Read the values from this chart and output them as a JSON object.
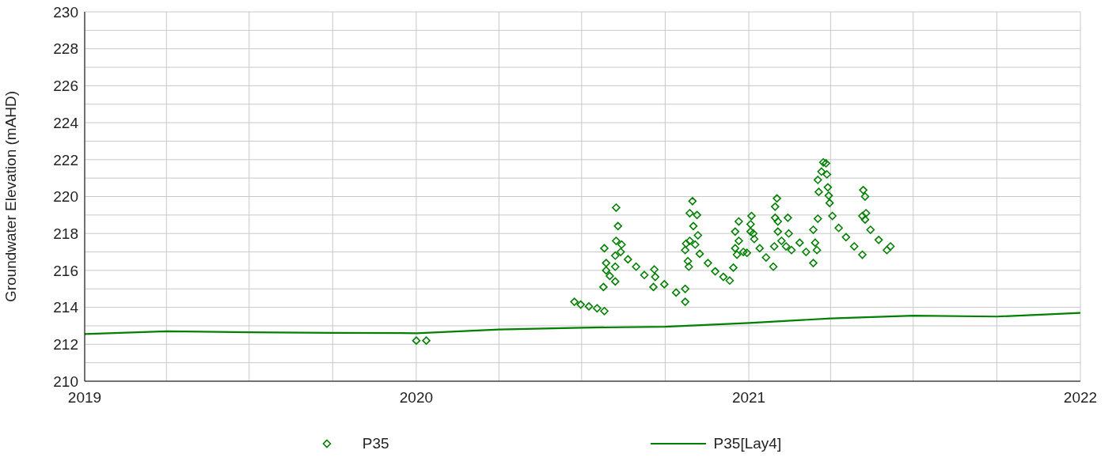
{
  "chart_data": {
    "type": "scatter",
    "ylabel": "Groundwater Elevation (mAHD)",
    "xlim": [
      "2019-01-01",
      "2022-01-01"
    ],
    "xticks": [
      {
        "value": "2019-01-01",
        "label": "2019"
      },
      {
        "value": "2019-04-01",
        "label": null
      },
      {
        "value": "2019-07-01",
        "label": null
      },
      {
        "value": "2019-10-01",
        "label": null
      },
      {
        "value": "2020-01-01",
        "label": "2020"
      },
      {
        "value": "2020-04-01",
        "label": null
      },
      {
        "value": "2020-07-01",
        "label": null
      },
      {
        "value": "2020-10-01",
        "label": null
      },
      {
        "value": "2021-01-01",
        "label": "2021"
      },
      {
        "value": "2021-04-01",
        "label": null
      },
      {
        "value": "2021-07-01",
        "label": null
      },
      {
        "value": "2021-10-01",
        "label": null
      },
      {
        "value": "2022-01-01",
        "label": "2022"
      }
    ],
    "ylim": [
      210,
      230
    ],
    "yticks": [
      210,
      {
        "value": 211,
        "label": null
      },
      212,
      {
        "value": 213,
        "label": null
      },
      214,
      {
        "value": 215,
        "label": null
      },
      216,
      {
        "value": 217,
        "label": null
      },
      218,
      {
        "value": 219,
        "label": null
      },
      220,
      {
        "value": 221,
        "label": null
      },
      222,
      {
        "value": 223,
        "label": null
      },
      224,
      {
        "value": 225,
        "label": null
      },
      226,
      {
        "value": 227,
        "label": null
      },
      228,
      {
        "value": 229,
        "label": null
      },
      230
    ],
    "grid": true,
    "legend": "bottom",
    "series": [
      {
        "name": "P35",
        "marker": "diamond",
        "color": "#008000",
        "x": [
          "2020-01-01",
          "2020-01-12",
          "2020-06-23",
          "2020-06-30",
          "2020-07-09",
          "2020-07-18",
          "2020-07-26",
          "2020-07-25",
          "2020-07-26",
          "2020-07-28",
          "2020-07-28",
          "2020-08-01",
          "2020-08-07",
          "2020-08-07",
          "2020-08-07",
          "2020-08-08",
          "2020-08-08",
          "2020-08-10",
          "2020-08-14",
          "2020-08-13",
          "2020-08-21",
          "2020-08-30",
          "2020-09-08",
          "2020-09-18",
          "2020-09-19",
          "2020-09-20",
          "2020-09-30",
          "2020-10-13",
          "2020-10-23",
          "2020-10-23",
          "2020-10-26",
          "2020-10-27",
          "2020-10-23",
          "2020-10-24",
          "2020-10-31",
          "2020-10-28",
          "2020-11-05",
          "2020-11-01",
          "2020-11-06",
          "2020-10-28",
          "2020-11-03",
          "2020-11-08",
          "2020-11-17",
          "2020-11-25",
          "2020-12-04",
          "2020-12-11",
          "2020-12-15",
          "2020-12-17",
          "2020-12-19",
          "2020-12-17",
          "2020-12-21",
          "2020-12-21",
          "2020-12-26",
          "2020-12-30",
          "2021-01-04",
          "2021-01-03",
          "2021-01-03",
          "2021-01-06",
          "2021-01-07",
          "2021-01-13",
          "2021-01-20",
          "2021-01-28",
          "2021-02-01",
          "2021-01-30",
          "2021-01-30",
          "2021-02-13",
          "2021-02-02",
          "2021-01-29",
          "2021-02-02",
          "2021-02-14",
          "2021-02-06",
          "2021-02-11",
          "2021-02-17",
          "2021-02-26",
          "2021-03-05",
          "2021-03-13",
          "2021-03-13",
          "2021-03-15",
          "2021-03-17",
          "2021-03-18",
          "2021-03-19",
          "2021-03-18",
          "2021-03-22",
          "2021-03-24",
          "2021-03-27",
          "2021-03-28",
          "2021-03-29",
          "2021-03-30",
          "2021-03-31",
          "2021-04-03",
          "2021-04-10",
          "2021-04-18",
          "2021-04-27",
          "2021-05-06",
          "2021-05-07",
          "2021-05-09",
          "2021-05-10",
          "2021-05-06",
          "2021-05-09",
          "2021-05-15",
          "2021-05-24",
          "2021-06-02",
          "2021-06-06"
        ],
        "values": [
          212.2,
          212.2,
          214.3,
          214.15,
          214.05,
          213.95,
          213.8,
          215.1,
          217.2,
          216.4,
          216.0,
          215.7,
          215.4,
          216.2,
          216.8,
          217.6,
          219.4,
          218.4,
          217.4,
          217.0,
          216.6,
          216.2,
          215.75,
          215.1,
          216.05,
          215.65,
          215.25,
          214.8,
          214.3,
          215.0,
          216.5,
          216.2,
          217.1,
          217.45,
          219.75,
          219.1,
          219.0,
          218.4,
          217.9,
          217.6,
          217.4,
          216.9,
          216.4,
          215.95,
          215.65,
          215.45,
          216.15,
          217.2,
          216.85,
          218.1,
          218.65,
          217.6,
          217.0,
          216.95,
          218.95,
          218.5,
          218.1,
          218.0,
          217.7,
          217.2,
          216.7,
          216.2,
          219.9,
          219.45,
          218.85,
          218.85,
          218.65,
          217.3,
          218.1,
          218.0,
          217.6,
          217.3,
          217.1,
          217.5,
          217.0,
          216.4,
          218.2,
          217.5,
          217.1,
          218.8,
          220.25,
          220.9,
          221.35,
          221.85,
          221.8,
          221.2,
          220.5,
          220.05,
          219.65,
          218.95,
          218.3,
          217.8,
          217.3,
          216.85,
          220.35,
          220.0,
          219.1,
          218.95,
          218.75,
          218.2,
          217.65,
          217.1,
          217.3
        ]
      },
      {
        "name": "P35[Lay4]",
        "type": "line",
        "marker": "none",
        "color": "#008000",
        "x": [
          "2019-01-01",
          "2019-04-01",
          "2019-07-01",
          "2019-10-01",
          "2020-01-01",
          "2020-04-01",
          "2020-07-01",
          "2020-10-01",
          "2021-01-01",
          "2021-04-01",
          "2021-07-01",
          "2021-10-01",
          "2022-01-01"
        ],
        "values": [
          212.55,
          212.7,
          212.65,
          212.62,
          212.6,
          212.8,
          212.9,
          212.95,
          213.15,
          213.4,
          213.55,
          213.5,
          213.7
        ]
      }
    ]
  }
}
